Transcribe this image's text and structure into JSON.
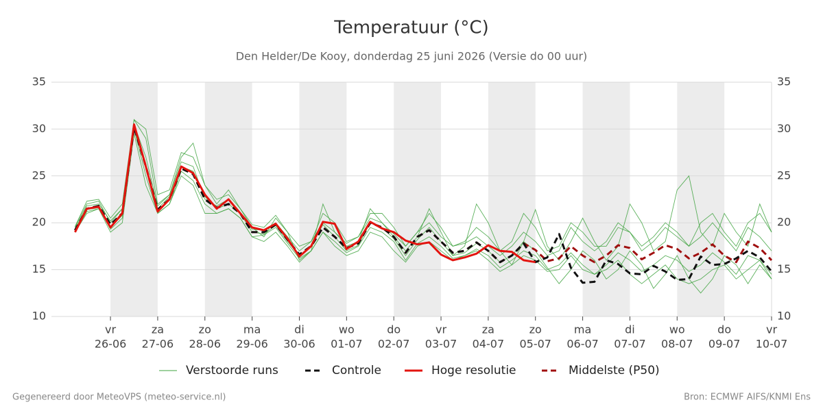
{
  "chart_data": {
    "type": "line",
    "title": "Temperatuur (°C)",
    "subtitle": "Den Helder/De Kooy, donderdag 25 juni 2026 (Versie do 00 uur)",
    "x": [
      -18,
      -12,
      -6,
      0,
      6,
      12,
      18,
      24,
      30,
      36,
      42,
      48,
      54,
      60,
      66,
      72,
      78,
      84,
      90,
      96,
      102,
      108,
      114,
      120,
      126,
      132,
      138,
      144,
      150,
      156,
      162,
      168,
      174,
      180,
      186,
      192,
      198,
      204,
      210,
      216,
      222,
      228,
      234,
      240,
      246,
      252,
      258,
      264,
      270,
      276,
      282,
      288,
      294,
      300,
      306,
      312,
      318,
      324,
      330,
      336
    ],
    "xlim": [
      -30,
      336
    ],
    "xticks": [
      {
        "value": 0,
        "label": "vr",
        "date": "26-06"
      },
      {
        "value": 24,
        "label": "za",
        "date": "27-06"
      },
      {
        "value": 48,
        "label": "zo",
        "date": "28-06"
      },
      {
        "value": 72,
        "label": "ma",
        "date": "29-06"
      },
      {
        "value": 96,
        "label": "di",
        "date": "30-06"
      },
      {
        "value": 120,
        "label": "wo",
        "date": "01-07"
      },
      {
        "value": 144,
        "label": "do",
        "date": "02-07"
      },
      {
        "value": 168,
        "label": "vr",
        "date": "03-07"
      },
      {
        "value": 192,
        "label": "za",
        "date": "04-07"
      },
      {
        "value": 216,
        "label": "zo",
        "date": "05-07"
      },
      {
        "value": 240,
        "label": "ma",
        "date": "06-07"
      },
      {
        "value": 264,
        "label": "di",
        "date": "07-07"
      },
      {
        "value": 288,
        "label": "wo",
        "date": "08-07"
      },
      {
        "value": 312,
        "label": "do",
        "date": "09-07"
      },
      {
        "value": 336,
        "label": "vr",
        "date": "10-07"
      }
    ],
    "ylim": [
      10,
      35
    ],
    "yticks": [
      10,
      15,
      20,
      25,
      30,
      35
    ],
    "grid": true,
    "ensemble": {
      "name": "Verstoorde runs",
      "color": "#3fa33f",
      "members": [
        [
          19.5,
          22,
          22.3,
          20,
          21.5,
          31,
          29,
          22,
          23,
          27,
          28.5,
          24,
          22,
          23.5,
          21.5,
          19.5,
          18.5,
          20.5,
          19,
          16,
          17,
          22,
          19,
          17.5,
          18,
          21.5,
          20,
          18.5,
          17,
          18.5,
          21.5,
          19,
          16.5,
          17.5,
          22,
          20,
          17,
          15.5,
          18,
          21.4,
          17.5,
          16,
          18,
          20.5,
          18,
          16,
          17.5,
          22,
          20,
          17,
          18,
          23.5,
          25,
          19,
          17.5,
          21,
          19,
          17.5,
          22,
          19
        ],
        [
          19,
          21,
          21.5,
          19,
          20,
          29.5,
          24,
          21,
          22,
          25,
          24,
          21,
          21,
          21.5,
          20.5,
          18.5,
          18,
          19,
          17.5,
          15.8,
          17,
          19,
          17.5,
          16.5,
          17,
          19,
          18.5,
          17,
          15.8,
          17.5,
          18,
          17,
          16,
          16.5,
          17,
          16,
          14.8,
          15.5,
          16.5,
          16,
          14.8,
          15,
          16.5,
          15,
          14.5,
          15,
          16,
          14.5,
          13.5,
          14.5,
          15.5,
          14,
          13.5,
          14,
          15,
          15.5,
          14,
          15,
          16,
          14
        ],
        [
          19.3,
          21.8,
          22,
          20.2,
          21.5,
          30.5,
          27,
          21.8,
          23,
          26.5,
          26,
          22.5,
          21.8,
          22.5,
          21,
          19.3,
          19.2,
          20,
          18.5,
          17,
          18,
          20,
          19,
          17.8,
          18.5,
          20.5,
          20,
          18.8,
          17.5,
          19,
          20,
          18.5,
          17.5,
          17.8,
          18.5,
          17.5,
          16.5,
          17.5,
          19,
          18,
          16.5,
          17,
          19.5,
          18,
          17,
          18,
          20,
          19,
          17,
          18,
          19.5,
          18.5,
          17.5,
          18.5,
          20,
          18.5,
          17,
          19.5,
          18.5,
          17
        ],
        [
          19,
          21.2,
          21.5,
          19.5,
          20.8,
          30,
          25,
          21,
          22,
          25.5,
          24.5,
          22,
          21,
          21.5,
          20.5,
          18.5,
          18.7,
          19.5,
          17.8,
          16.2,
          17,
          19,
          18,
          16.8,
          17.5,
          19.5,
          19,
          18,
          16,
          17.8,
          18.5,
          17.5,
          16.2,
          16.5,
          17.2,
          16.5,
          15.2,
          16,
          17,
          16.5,
          15,
          15.5,
          16.8,
          15.5,
          14.5,
          15.5,
          16.8,
          16,
          14.8,
          15.5,
          16.5,
          16,
          14.8,
          15.5,
          16.8,
          15.8,
          14.5,
          16.5,
          16,
          14.5
        ],
        [
          19.6,
          22.3,
          22.5,
          20.5,
          22,
          31,
          30,
          23,
          23.5,
          27.5,
          27,
          24,
          22.5,
          23,
          21.5,
          19.8,
          19.5,
          20.8,
          19,
          17.5,
          18,
          21,
          20,
          18,
          18.5,
          21,
          21,
          19.5,
          17.5,
          19,
          21,
          19.5,
          17.5,
          18,
          19.5,
          18.5,
          17,
          18,
          21,
          19.5,
          17,
          17.5,
          20,
          19,
          17.5,
          17.5,
          19.5,
          19,
          17.5,
          18.5,
          20,
          19,
          17.5,
          20,
          21,
          19,
          17.5,
          20,
          21,
          19
        ],
        [
          19.2,
          21.4,
          21.6,
          19.3,
          20.5,
          30,
          26,
          21.5,
          22.8,
          26,
          25.5,
          22.8,
          21.5,
          22,
          21,
          19,
          18.8,
          19.7,
          18,
          16.5,
          17.5,
          19.8,
          18.5,
          17,
          17.6,
          20,
          19.5,
          18.3,
          16.5,
          18.2,
          19.5,
          18,
          16.5,
          16.8,
          17.8,
          17,
          15.8,
          16.5,
          18,
          17,
          15.2,
          13.5,
          15,
          17,
          16,
          14,
          15,
          17,
          15.5,
          13,
          14.5,
          16.5,
          14,
          12.5,
          14,
          16.5,
          15.5,
          13.5,
          15.5,
          14
        ]
      ]
    },
    "series": [
      {
        "name": "Controle",
        "color": "#111111",
        "dash": true,
        "values": [
          19.2,
          21.5,
          21.8,
          19.8,
          21,
          30.2,
          26,
          21.4,
          22.5,
          25.8,
          25.2,
          22.5,
          21.6,
          22,
          21,
          19,
          19,
          19.8,
          18.2,
          16.6,
          17.5,
          19.5,
          18.5,
          17.3,
          17.8,
          20,
          19.5,
          18.5,
          16.8,
          18.5,
          19.2,
          18,
          16.8,
          17,
          17.9,
          17,
          15.8,
          16.5,
          17.8,
          15.8,
          16.3,
          18.8,
          15.2,
          13.6,
          13.7,
          16,
          15.6,
          14.6,
          14.5,
          15.4,
          14.8,
          13.9,
          14,
          16.4,
          15.5,
          15.6,
          16.2,
          17,
          16.3,
          14.8
        ]
      },
      {
        "name": "Hoge resolutie",
        "color": "#e3140f",
        "dash": false,
        "values": [
          19,
          21.5,
          21.7,
          19.5,
          21,
          30.5,
          26,
          21.2,
          22.5,
          26,
          25.3,
          23,
          21.5,
          22.5,
          21,
          19.5,
          19.2,
          19.9,
          18.3,
          16.4,
          17.5,
          20.1,
          19.9,
          17.2,
          18,
          20.1,
          19.4,
          19,
          18.1,
          17.7,
          17.9,
          16.6,
          16,
          16.3,
          16.7,
          17.6,
          17,
          16.9,
          16,
          15.8,
          null,
          null,
          null,
          null,
          null,
          null,
          null,
          null,
          null,
          null,
          null,
          null,
          null,
          null,
          null,
          null,
          null,
          null,
          null,
          null
        ]
      },
      {
        "name": "Middelste (P50)",
        "color": "#a01010",
        "dash": true,
        "values": [
          19.2,
          21.5,
          21.8,
          19.8,
          21,
          30.2,
          26,
          21.4,
          22.5,
          25.8,
          25.2,
          22.5,
          21.6,
          22,
          21,
          19,
          19,
          19.8,
          18.2,
          16.6,
          17.5,
          19.5,
          18.5,
          17.3,
          17.8,
          20,
          19.5,
          18.5,
          16.8,
          18.5,
          19.2,
          18,
          16.8,
          17,
          17.9,
          17,
          15.8,
          16.5,
          17.8,
          17.1,
          15.9,
          16.2,
          17.5,
          16.5,
          15.8,
          16.5,
          17.6,
          17.3,
          16.1,
          16.8,
          17.6,
          17.2,
          16.2,
          16.8,
          17.7,
          16.5,
          15.8,
          18,
          17.3,
          16
        ]
      }
    ]
  },
  "footer": {
    "left": "Gegenereerd door MeteoVPS (meteo-service.nl)",
    "right": "Bron: ECMWF AIFS/KNMI Ens"
  }
}
